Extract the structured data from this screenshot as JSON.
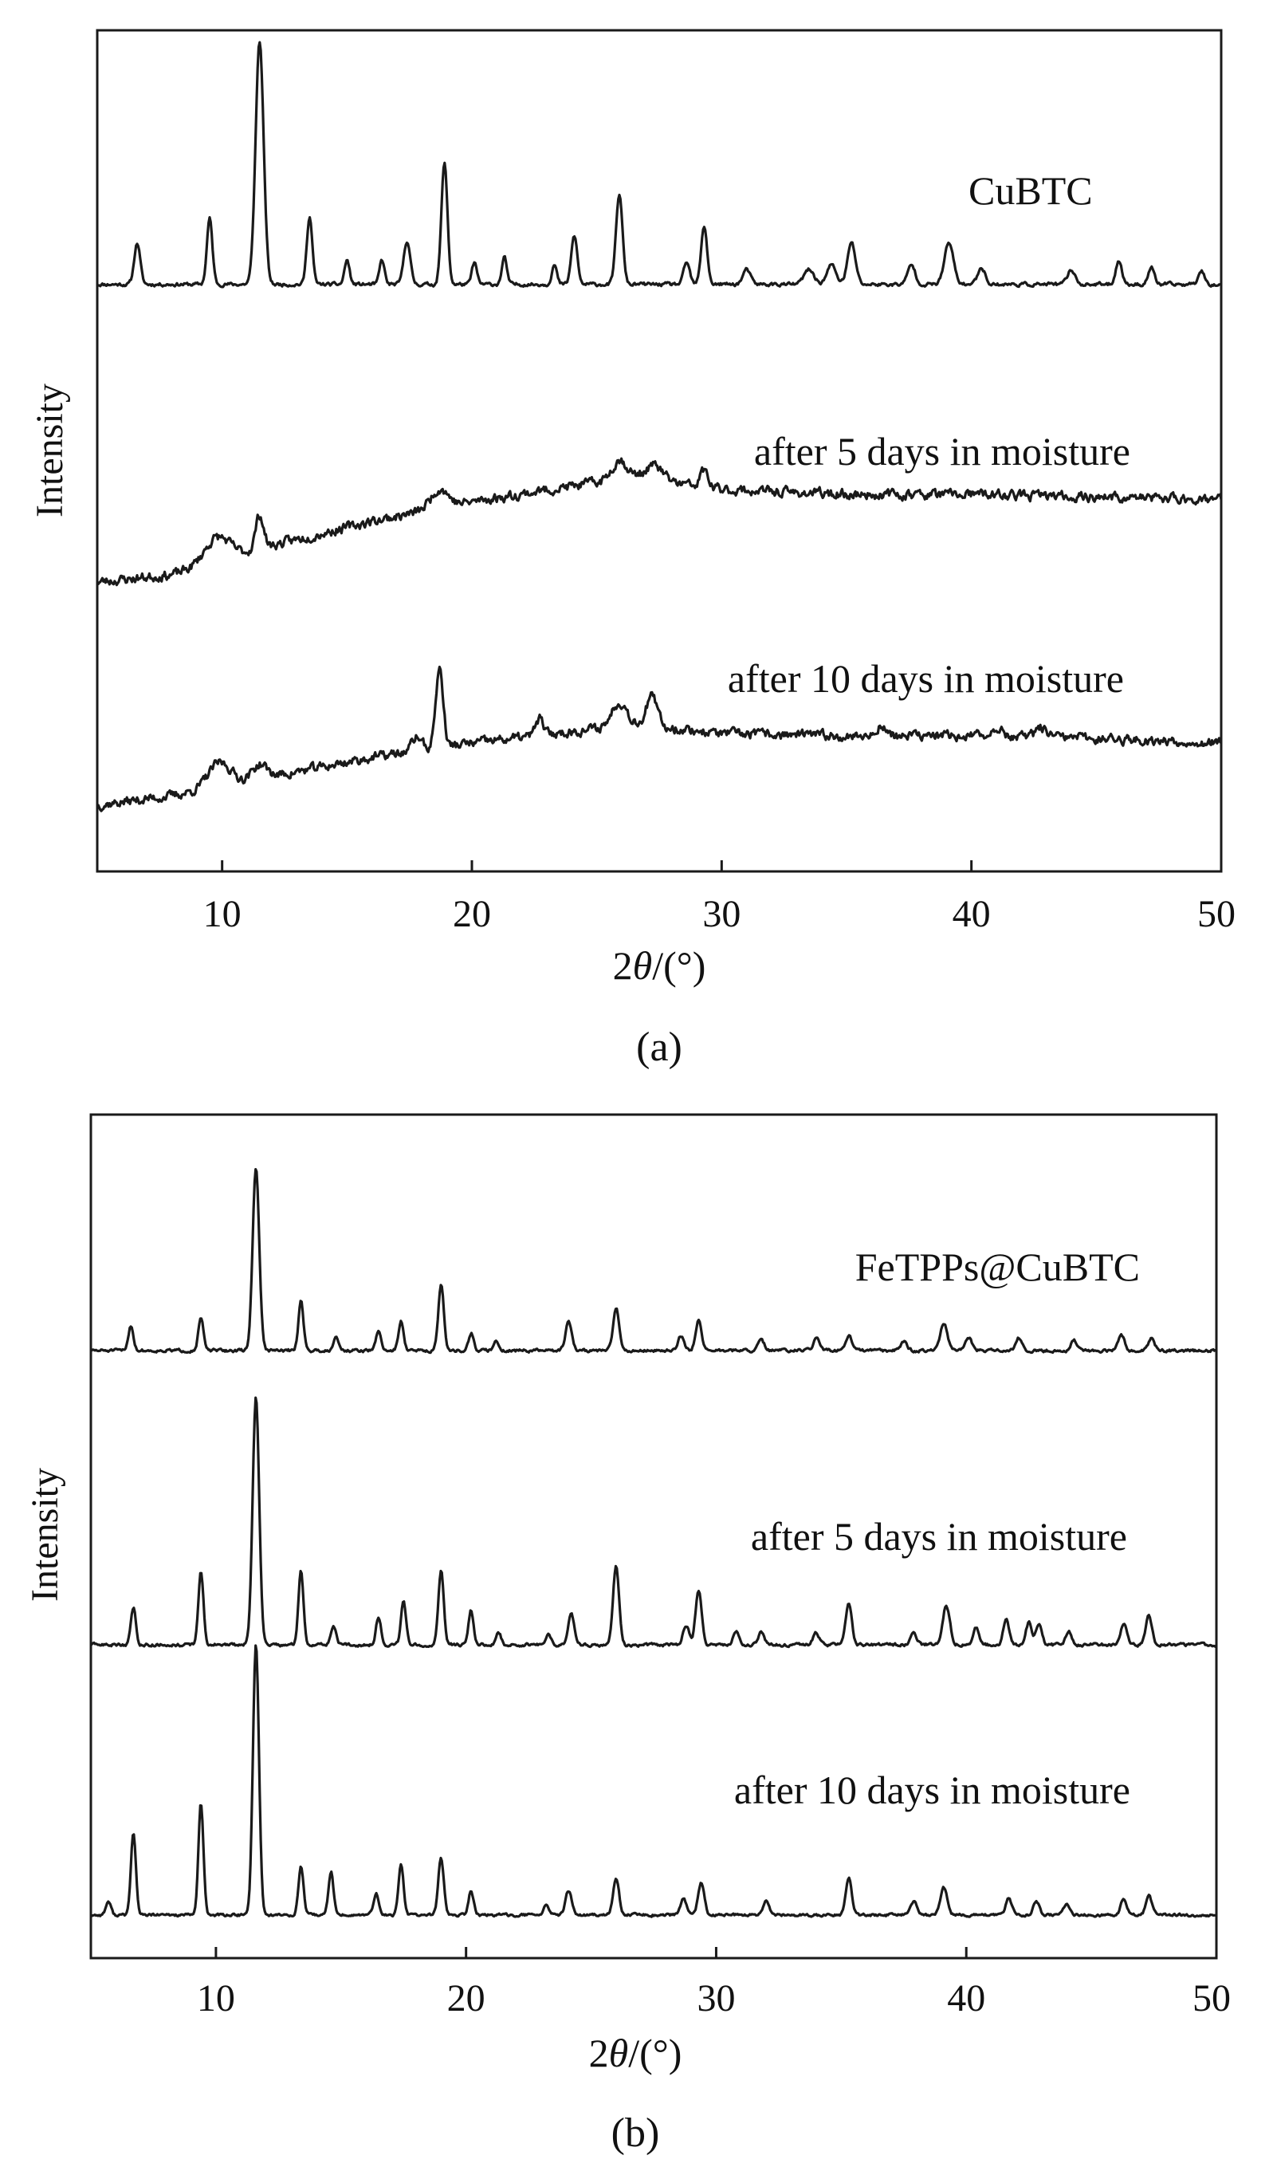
{
  "line_color": "#1a1a1a",
  "chart_data": [
    {
      "type": "line",
      "panel_label": "(a)",
      "xlabel_prefix": "2",
      "xlabel_theta": "θ",
      "xlabel_suffix": "/(°)",
      "ylabel": "Intensity",
      "xlim": [
        5,
        50
      ],
      "xticks": [
        10,
        20,
        30,
        40,
        50
      ],
      "y_ticks_shown": false,
      "series": [
        {
          "name": "CuBTC",
          "baseline": [
            [
              5,
              0.06
            ],
            [
              50,
              0.06
            ]
          ],
          "noise": 0.006,
          "seed": 11,
          "peaks": [
            [
              6.6,
              0.17,
              0.12
            ],
            [
              9.5,
              0.27,
              0.11
            ],
            [
              11.5,
              1.0,
              0.16
            ],
            [
              13.5,
              0.28,
              0.11
            ],
            [
              15.0,
              0.1,
              0.1
            ],
            [
              16.4,
              0.1,
              0.1
            ],
            [
              17.4,
              0.18,
              0.13
            ],
            [
              18.9,
              0.5,
              0.12
            ],
            [
              20.1,
              0.09,
              0.1
            ],
            [
              21.3,
              0.11,
              0.1
            ],
            [
              23.3,
              0.08,
              0.1
            ],
            [
              24.1,
              0.2,
              0.12
            ],
            [
              25.9,
              0.37,
              0.13
            ],
            [
              28.6,
              0.09,
              0.12
            ],
            [
              29.3,
              0.24,
              0.12
            ],
            [
              31.0,
              0.06,
              0.15
            ],
            [
              33.5,
              0.06,
              0.2
            ],
            [
              34.4,
              0.08,
              0.18
            ],
            [
              35.2,
              0.17,
              0.16
            ],
            [
              37.6,
              0.08,
              0.15
            ],
            [
              39.1,
              0.17,
              0.18
            ],
            [
              40.4,
              0.07,
              0.15
            ],
            [
              44.0,
              0.06,
              0.15
            ],
            [
              45.9,
              0.1,
              0.12
            ],
            [
              47.2,
              0.07,
              0.12
            ],
            [
              49.2,
              0.06,
              0.12
            ]
          ]
        },
        {
          "name": "after 5 days in moisture",
          "baseline": [
            [
              5,
              0.0
            ],
            [
              8,
              0.03
            ],
            [
              12,
              0.15
            ],
            [
              16,
              0.25
            ],
            [
              20,
              0.33
            ],
            [
              25,
              0.41
            ],
            [
              26.5,
              0.43
            ],
            [
              30,
              0.38
            ],
            [
              35,
              0.36
            ],
            [
              40,
              0.36
            ],
            [
              45,
              0.35
            ],
            [
              50,
              0.34
            ]
          ],
          "noise": 0.016,
          "seed": 23,
          "peaks": [
            [
              9.8,
              0.1,
              0.5
            ],
            [
              11.5,
              0.14,
              0.16
            ],
            [
              18.7,
              0.08,
              0.35
            ],
            [
              25.9,
              0.08,
              0.3
            ],
            [
              27.3,
              0.06,
              0.35
            ],
            [
              29.3,
              0.07,
              0.15
            ]
          ]
        },
        {
          "name": "after 10 days in moisture",
          "baseline": [
            [
              5,
              0.0
            ],
            [
              8,
              0.04
            ],
            [
              12,
              0.12
            ],
            [
              16,
              0.2
            ],
            [
              20,
              0.26
            ],
            [
              25,
              0.32
            ],
            [
              26.5,
              0.34
            ],
            [
              30,
              0.3
            ],
            [
              35,
              0.29
            ],
            [
              40,
              0.29
            ],
            [
              45,
              0.28
            ],
            [
              50,
              0.26
            ]
          ],
          "noise": 0.016,
          "seed": 37,
          "peaks": [
            [
              9.9,
              0.1,
              0.45
            ],
            [
              11.5,
              0.06,
              0.3
            ],
            [
              18.7,
              0.33,
              0.15
            ],
            [
              17.8,
              0.06,
              0.2
            ],
            [
              22.7,
              0.07,
              0.15
            ],
            [
              25.9,
              0.1,
              0.3
            ],
            [
              27.2,
              0.12,
              0.22
            ],
            [
              36.4,
              0.05,
              0.15
            ],
            [
              41.0,
              0.04,
              0.2
            ],
            [
              42.8,
              0.04,
              0.2
            ]
          ]
        }
      ]
    },
    {
      "type": "line",
      "panel_label": "(b)",
      "xlabel_prefix": "2",
      "xlabel_theta": "θ",
      "xlabel_suffix": "/(°)",
      "ylabel": "Intensity",
      "xlim": [
        5,
        50
      ],
      "xticks": [
        10,
        20,
        30,
        40,
        50
      ],
      "y_ticks_shown": false,
      "series": [
        {
          "name": "FeTPPs@CuBTC",
          "baseline": [
            [
              5,
              0.0
            ],
            [
              50,
              0.0
            ]
          ],
          "noise": 0.005,
          "seed": 51,
          "peaks": [
            [
              6.6,
              0.1,
              0.1
            ],
            [
              9.4,
              0.13,
              0.1
            ],
            [
              11.6,
              0.73,
              0.13
            ],
            [
              13.4,
              0.2,
              0.1
            ],
            [
              14.8,
              0.06,
              0.1
            ],
            [
              16.5,
              0.08,
              0.1
            ],
            [
              17.4,
              0.12,
              0.1
            ],
            [
              19.0,
              0.26,
              0.11
            ],
            [
              20.2,
              0.07,
              0.1
            ],
            [
              21.2,
              0.04,
              0.1
            ],
            [
              24.1,
              0.12,
              0.12
            ],
            [
              26.0,
              0.17,
              0.12
            ],
            [
              28.6,
              0.06,
              0.12
            ],
            [
              29.3,
              0.12,
              0.12
            ],
            [
              31.8,
              0.04,
              0.12
            ],
            [
              34.0,
              0.05,
              0.12
            ],
            [
              35.3,
              0.06,
              0.12
            ],
            [
              37.5,
              0.04,
              0.12
            ],
            [
              39.1,
              0.11,
              0.14
            ],
            [
              40.1,
              0.05,
              0.12
            ],
            [
              42.1,
              0.05,
              0.12
            ],
            [
              44.3,
              0.04,
              0.12
            ],
            [
              46.2,
              0.06,
              0.12
            ],
            [
              47.4,
              0.05,
              0.12
            ]
          ]
        },
        {
          "name": "after 5 days in moisture",
          "baseline": [
            [
              5,
              0.0
            ],
            [
              50,
              0.0
            ]
          ],
          "noise": 0.005,
          "seed": 63,
          "peaks": [
            [
              6.7,
              0.15,
              0.1
            ],
            [
              9.4,
              0.3,
              0.1
            ],
            [
              11.6,
              1.0,
              0.13
            ],
            [
              13.4,
              0.3,
              0.1
            ],
            [
              14.7,
              0.08,
              0.1
            ],
            [
              16.5,
              0.11,
              0.1
            ],
            [
              17.5,
              0.18,
              0.1
            ],
            [
              19.0,
              0.3,
              0.11
            ],
            [
              20.2,
              0.14,
              0.1
            ],
            [
              21.3,
              0.05,
              0.1
            ],
            [
              23.3,
              0.04,
              0.1
            ],
            [
              24.2,
              0.13,
              0.12
            ],
            [
              26.0,
              0.32,
              0.12
            ],
            [
              28.8,
              0.08,
              0.12
            ],
            [
              29.3,
              0.22,
              0.12
            ],
            [
              30.8,
              0.05,
              0.12
            ],
            [
              31.8,
              0.05,
              0.12
            ],
            [
              34.0,
              0.05,
              0.12
            ],
            [
              35.3,
              0.17,
              0.12
            ],
            [
              37.9,
              0.05,
              0.12
            ],
            [
              39.2,
              0.16,
              0.14
            ],
            [
              40.4,
              0.07,
              0.12
            ],
            [
              41.6,
              0.1,
              0.12
            ],
            [
              42.5,
              0.09,
              0.12
            ],
            [
              42.9,
              0.08,
              0.12
            ],
            [
              44.1,
              0.05,
              0.12
            ],
            [
              46.3,
              0.09,
              0.12
            ],
            [
              47.3,
              0.12,
              0.12
            ]
          ]
        },
        {
          "name": "after 10 days in moisture",
          "baseline": [
            [
              5,
              0.0
            ],
            [
              50,
              0.0
            ]
          ],
          "noise": 0.004,
          "seed": 77,
          "peaks": [
            [
              5.7,
              0.05,
              0.1
            ],
            [
              6.7,
              0.3,
              0.1
            ],
            [
              9.4,
              0.41,
              0.1
            ],
            [
              11.6,
              1.0,
              0.12
            ],
            [
              13.4,
              0.18,
              0.1
            ],
            [
              14.6,
              0.16,
              0.1
            ],
            [
              16.4,
              0.08,
              0.1
            ],
            [
              17.4,
              0.19,
              0.1
            ],
            [
              19.0,
              0.21,
              0.11
            ],
            [
              20.2,
              0.09,
              0.1
            ],
            [
              23.2,
              0.04,
              0.1
            ],
            [
              24.1,
              0.09,
              0.12
            ],
            [
              26.0,
              0.13,
              0.12
            ],
            [
              28.7,
              0.06,
              0.12
            ],
            [
              29.4,
              0.12,
              0.12
            ],
            [
              32.0,
              0.05,
              0.12
            ],
            [
              35.3,
              0.14,
              0.12
            ],
            [
              37.9,
              0.05,
              0.12
            ],
            [
              39.1,
              0.1,
              0.14
            ],
            [
              41.7,
              0.06,
              0.12
            ],
            [
              42.8,
              0.05,
              0.12
            ],
            [
              44.0,
              0.04,
              0.12
            ],
            [
              46.3,
              0.06,
              0.12
            ],
            [
              47.3,
              0.07,
              0.12
            ]
          ]
        }
      ]
    }
  ]
}
